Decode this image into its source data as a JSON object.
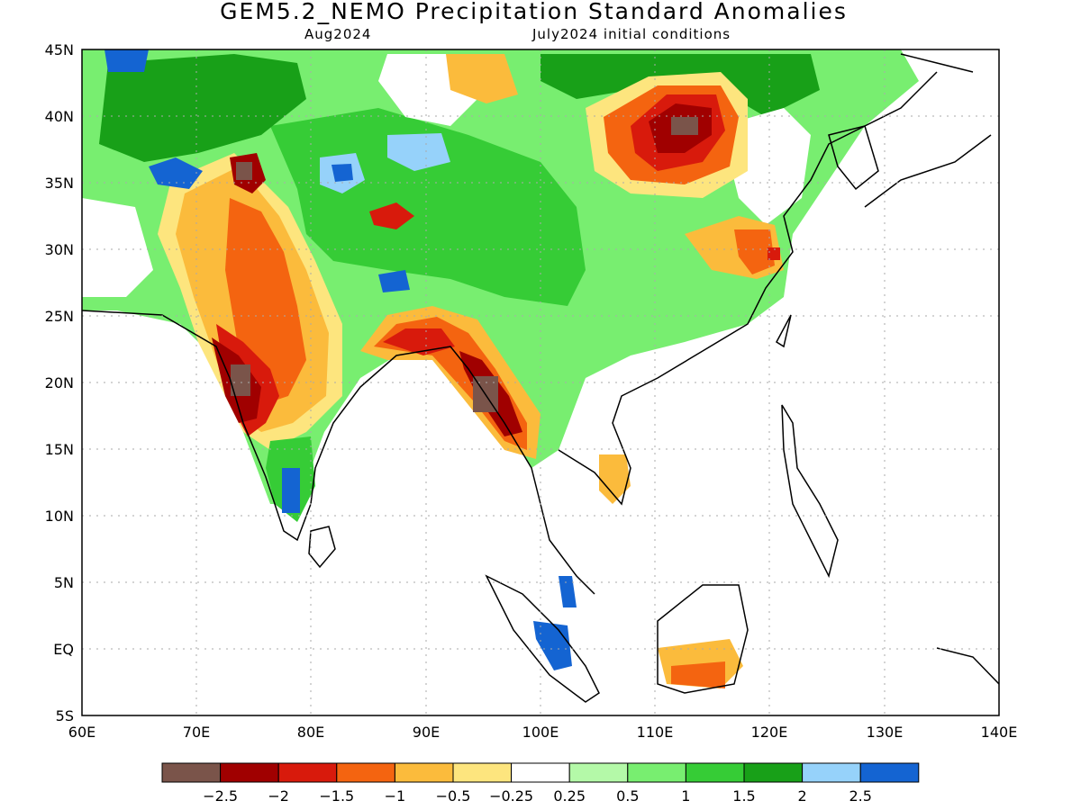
{
  "title": "GEM5.2_NEMO Precipitation Standard Anomalies",
  "subtitle_left": "Aug2024",
  "subtitle_right": "July2024 initial conditions",
  "axes": {
    "lat_labels": [
      "45N",
      "40N",
      "35N",
      "30N",
      "25N",
      "20N",
      "15N",
      "10N",
      "5N",
      "EQ",
      "5S"
    ],
    "lon_labels": [
      "60E",
      "70E",
      "80E",
      "90E",
      "100E",
      "110E",
      "120E",
      "130E",
      "140E"
    ]
  },
  "map_extent": {
    "lon_min": 60,
    "lon_max": 140,
    "lat_min": -5,
    "lat_max": 45
  },
  "colorbar": {
    "colors": [
      "#7a544a",
      "#a00000",
      "#d81a0c",
      "#f46410",
      "#fbbb3c",
      "#fde57e",
      "#ffffff",
      "#b4f9a8",
      "#78ee70",
      "#36cc36",
      "#18a018",
      "#96d2fa",
      "#1464d2"
    ],
    "tick_labels": [
      "-2.5",
      "-2",
      "-1.5",
      "-1",
      "-0.5",
      "-0.25",
      "0.25",
      "0.5",
      "1",
      "1.5",
      "2",
      "2.5"
    ]
  },
  "anomaly_regions": [
    {
      "name": "western India dry",
      "level": "-2",
      "lon": [
        72.5,
        78
      ],
      "lat": [
        15,
        24
      ]
    },
    {
      "name": "western India core",
      "level": "-2.5",
      "lon": [
        73,
        75
      ],
      "lat": [
        18,
        20
      ]
    },
    {
      "name": "Pakistan dry",
      "level": "-1",
      "lon": [
        70,
        80
      ],
      "lat": [
        24,
        34
      ]
    },
    {
      "name": "north China dry",
      "level": "-2",
      "lon": [
        106,
        117
      ],
      "lat": [
        33,
        42
      ]
    },
    {
      "name": "Bangladesh dry",
      "level": "-2",
      "lon": [
        86,
        96
      ],
      "lat": [
        21,
        25
      ]
    },
    {
      "name": "Myanmar dry",
      "level": "-2.5",
      "lon": [
        93,
        99
      ],
      "lat": [
        15,
        23
      ]
    },
    {
      "name": "southern India wet",
      "level": "2.5",
      "lon": [
        77,
        79
      ],
      "lat": [
        10,
        14
      ]
    },
    {
      "name": "Sumatra wet",
      "level": "2.5",
      "lon": [
        99,
        102
      ],
      "lat": [
        -2,
        2
      ]
    },
    {
      "name": "Tibet wet",
      "level": "1",
      "lon": [
        82,
        106
      ],
      "lat": [
        27,
        37
      ]
    },
    {
      "name": "Borneo dry",
      "level": "-1",
      "lon": [
        110,
        116
      ],
      "lat": [
        -4,
        2
      ]
    }
  ]
}
